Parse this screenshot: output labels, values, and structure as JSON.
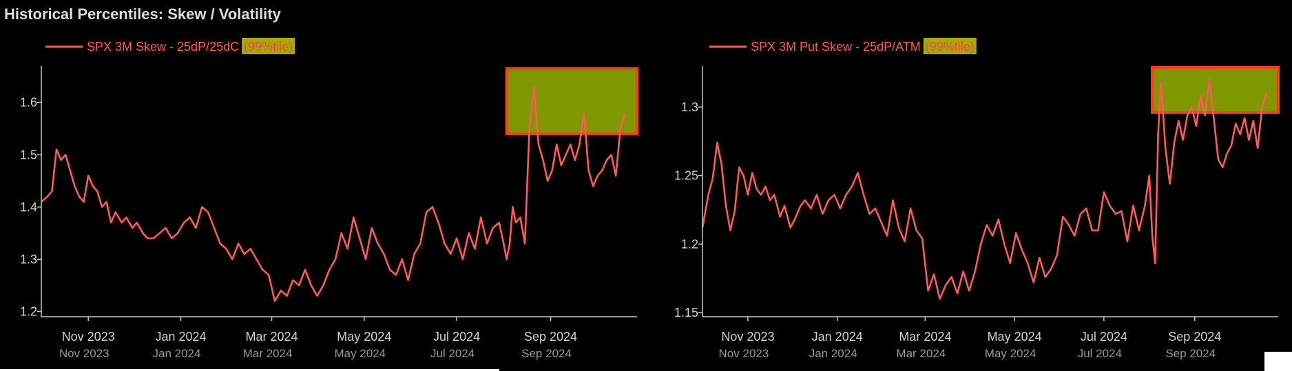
{
  "figure": {
    "title": "Historical Percentiles: Skew / Volatility",
    "colors": {
      "background": "#000000",
      "line": "#ff5a5a",
      "axis": "#c8c8c8",
      "text": "#d2d2d2",
      "title": "#dcdcdc",
      "badge_fill": "#a8a800",
      "badge_text": "#e05050",
      "highlight_fill": "#7f9800",
      "highlight_border": "#ff3b20"
    }
  },
  "chart_data": [
    {
      "type": "line",
      "legend": "SPX 3M Skew - 25dP/25dC",
      "badge": "(99%tile)",
      "ylim": [
        1.19,
        1.67
      ],
      "yticks": [
        1.2,
        1.3,
        1.4,
        1.5,
        1.6
      ],
      "ytick_labels": [
        "1.2",
        "1.3",
        "1.4",
        "1.5",
        "1.6"
      ],
      "xlim": [
        "2023-10-01",
        "2024-10-28"
      ],
      "xticks": [
        "2023-11-01",
        "2024-01-01",
        "2024-03-01",
        "2024-05-01",
        "2024-07-01",
        "2024-09-01"
      ],
      "xtick_labels": [
        "Nov 2023",
        "Jan 2024",
        "Mar 2024",
        "May 2024",
        "Jul 2024",
        "Sep 2024"
      ],
      "highlight": {
        "x": [
          "2024-08-03",
          "2024-10-28"
        ],
        "y": [
          1.54,
          1.665
        ]
      },
      "series": [
        {
          "x": [
            "2023-10-01",
            "2023-10-05",
            "2023-10-08",
            "2023-10-11",
            "2023-10-14",
            "2023-10-17",
            "2023-10-20",
            "2023-10-23",
            "2023-10-26",
            "2023-10-29",
            "2023-11-01",
            "2023-11-04",
            "2023-11-07",
            "2023-11-10",
            "2023-11-13",
            "2023-11-16",
            "2023-11-19",
            "2023-11-23",
            "2023-11-26",
            "2023-11-30",
            "2023-12-03",
            "2023-12-07",
            "2023-12-10",
            "2023-12-14",
            "2023-12-18",
            "2023-12-22",
            "2023-12-26",
            "2023-12-30",
            "2024-01-03",
            "2024-01-07",
            "2024-01-11",
            "2024-01-15",
            "2024-01-19",
            "2024-01-23",
            "2024-01-27",
            "2024-01-31",
            "2024-02-04",
            "2024-02-08",
            "2024-02-12",
            "2024-02-16",
            "2024-02-20",
            "2024-02-24",
            "2024-02-28",
            "2024-03-03",
            "2024-03-07",
            "2024-03-11",
            "2024-03-15",
            "2024-03-19",
            "2024-03-23",
            "2024-03-27",
            "2024-03-31",
            "2024-04-04",
            "2024-04-08",
            "2024-04-12",
            "2024-04-16",
            "2024-04-20",
            "2024-04-24",
            "2024-04-28",
            "2024-05-02",
            "2024-05-06",
            "2024-05-10",
            "2024-05-14",
            "2024-05-18",
            "2024-05-22",
            "2024-05-26",
            "2024-05-30",
            "2024-06-03",
            "2024-06-07",
            "2024-06-11",
            "2024-06-15",
            "2024-06-19",
            "2024-06-23",
            "2024-06-27",
            "2024-07-01",
            "2024-07-05",
            "2024-07-09",
            "2024-07-13",
            "2024-07-17",
            "2024-07-21",
            "2024-07-25",
            "2024-07-29",
            "2024-08-01",
            "2024-08-03",
            "2024-08-05",
            "2024-08-07",
            "2024-08-09",
            "2024-08-12",
            "2024-08-15",
            "2024-08-18",
            "2024-08-21",
            "2024-08-24",
            "2024-08-27",
            "2024-08-30",
            "2024-09-02",
            "2024-09-05",
            "2024-09-08",
            "2024-09-11",
            "2024-09-14",
            "2024-09-17",
            "2024-09-20",
            "2024-09-23",
            "2024-09-26",
            "2024-09-29",
            "2024-10-02",
            "2024-10-05",
            "2024-10-08",
            "2024-10-11",
            "2024-10-14",
            "2024-10-17",
            "2024-10-20"
          ],
          "values": [
            1.41,
            1.42,
            1.43,
            1.51,
            1.49,
            1.5,
            1.47,
            1.44,
            1.42,
            1.41,
            1.46,
            1.44,
            1.43,
            1.4,
            1.41,
            1.37,
            1.39,
            1.37,
            1.38,
            1.36,
            1.37,
            1.35,
            1.34,
            1.34,
            1.35,
            1.36,
            1.34,
            1.35,
            1.37,
            1.38,
            1.36,
            1.4,
            1.39,
            1.36,
            1.33,
            1.32,
            1.3,
            1.33,
            1.31,
            1.32,
            1.3,
            1.28,
            1.27,
            1.22,
            1.24,
            1.23,
            1.26,
            1.25,
            1.28,
            1.25,
            1.23,
            1.25,
            1.28,
            1.3,
            1.35,
            1.32,
            1.38,
            1.34,
            1.3,
            1.36,
            1.33,
            1.31,
            1.28,
            1.27,
            1.3,
            1.26,
            1.31,
            1.33,
            1.39,
            1.4,
            1.37,
            1.33,
            1.31,
            1.34,
            1.3,
            1.35,
            1.32,
            1.38,
            1.33,
            1.36,
            1.37,
            1.33,
            1.3,
            1.33,
            1.4,
            1.37,
            1.38,
            1.33,
            1.55,
            1.63,
            1.52,
            1.49,
            1.45,
            1.47,
            1.52,
            1.48,
            1.5,
            1.52,
            1.49,
            1.52,
            1.58,
            1.47,
            1.44,
            1.46,
            1.47,
            1.49,
            1.5,
            1.46,
            1.55,
            1.58
          ]
        }
      ]
    },
    {
      "type": "line",
      "legend": "SPX 3M Put Skew - 25dP/ATM",
      "badge": "(99%tile)",
      "ylim": [
        1.147,
        1.33
      ],
      "yticks": [
        1.15,
        1.2,
        1.25,
        1.3
      ],
      "ytick_labels": [
        "1.15",
        "1.2",
        "1.25",
        "1.3"
      ],
      "xlim": [
        "2023-10-01",
        "2024-10-28"
      ],
      "xticks": [
        "2023-11-01",
        "2024-01-01",
        "2024-03-01",
        "2024-05-01",
        "2024-07-01",
        "2024-09-01"
      ],
      "xtick_labels": [
        "Nov 2023",
        "Jan 2024",
        "Mar 2024",
        "May 2024",
        "Jul 2024",
        "Sep 2024"
      ],
      "highlight": {
        "x": [
          "2024-08-03",
          "2024-10-28"
        ],
        "y": [
          1.296,
          1.329
        ]
      },
      "series": [
        {
          "x": [
            "2023-10-01",
            "2023-10-05",
            "2023-10-08",
            "2023-10-11",
            "2023-10-14",
            "2023-10-17",
            "2023-10-20",
            "2023-10-23",
            "2023-10-26",
            "2023-10-29",
            "2023-11-01",
            "2023-11-04",
            "2023-11-07",
            "2023-11-10",
            "2023-11-13",
            "2023-11-16",
            "2023-11-19",
            "2023-11-23",
            "2023-11-26",
            "2023-11-30",
            "2023-12-03",
            "2023-12-07",
            "2023-12-10",
            "2023-12-14",
            "2023-12-18",
            "2023-12-22",
            "2023-12-26",
            "2023-12-30",
            "2024-01-03",
            "2024-01-07",
            "2024-01-11",
            "2024-01-15",
            "2024-01-19",
            "2024-01-23",
            "2024-01-27",
            "2024-01-31",
            "2024-02-04",
            "2024-02-08",
            "2024-02-12",
            "2024-02-16",
            "2024-02-20",
            "2024-02-24",
            "2024-02-28",
            "2024-03-03",
            "2024-03-07",
            "2024-03-11",
            "2024-03-15",
            "2024-03-19",
            "2024-03-23",
            "2024-03-27",
            "2024-03-31",
            "2024-04-04",
            "2024-04-08",
            "2024-04-12",
            "2024-04-16",
            "2024-04-20",
            "2024-04-24",
            "2024-04-28",
            "2024-05-02",
            "2024-05-06",
            "2024-05-10",
            "2024-05-14",
            "2024-05-18",
            "2024-05-22",
            "2024-05-26",
            "2024-05-30",
            "2024-06-03",
            "2024-06-07",
            "2024-06-11",
            "2024-06-15",
            "2024-06-19",
            "2024-06-23",
            "2024-06-27",
            "2024-07-01",
            "2024-07-05",
            "2024-07-09",
            "2024-07-13",
            "2024-07-17",
            "2024-07-21",
            "2024-07-25",
            "2024-07-29",
            "2024-08-01",
            "2024-08-03",
            "2024-08-05",
            "2024-08-07",
            "2024-08-09",
            "2024-08-12",
            "2024-08-15",
            "2024-08-18",
            "2024-08-21",
            "2024-08-24",
            "2024-08-27",
            "2024-08-30",
            "2024-09-02",
            "2024-09-05",
            "2024-09-08",
            "2024-09-11",
            "2024-09-14",
            "2024-09-17",
            "2024-09-20",
            "2024-09-23",
            "2024-09-26",
            "2024-09-29",
            "2024-10-02",
            "2024-10-05",
            "2024-10-08",
            "2024-10-11",
            "2024-10-14",
            "2024-10-17",
            "2024-10-20"
          ],
          "values": [
            1.212,
            1.236,
            1.248,
            1.274,
            1.258,
            1.228,
            1.21,
            1.224,
            1.256,
            1.25,
            1.236,
            1.252,
            1.24,
            1.236,
            1.242,
            1.232,
            1.236,
            1.22,
            1.228,
            1.212,
            1.218,
            1.228,
            1.232,
            1.226,
            1.236,
            1.222,
            1.232,
            1.236,
            1.226,
            1.236,
            1.242,
            1.252,
            1.236,
            1.222,
            1.226,
            1.216,
            1.206,
            1.232,
            1.212,
            1.202,
            1.226,
            1.21,
            1.204,
            1.166,
            1.178,
            1.16,
            1.17,
            1.176,
            1.164,
            1.18,
            1.166,
            1.18,
            1.2,
            1.214,
            1.206,
            1.218,
            1.2,
            1.186,
            1.208,
            1.196,
            1.186,
            1.172,
            1.19,
            1.176,
            1.182,
            1.192,
            1.22,
            1.214,
            1.206,
            1.222,
            1.226,
            1.21,
            1.21,
            1.238,
            1.228,
            1.222,
            1.224,
            1.202,
            1.228,
            1.21,
            1.228,
            1.25,
            1.206,
            1.186,
            1.28,
            1.318,
            1.27,
            1.244,
            1.274,
            1.29,
            1.276,
            1.294,
            1.3,
            1.286,
            1.308,
            1.294,
            1.32,
            1.292,
            1.262,
            1.256,
            1.266,
            1.272,
            1.288,
            1.28,
            1.292,
            1.276,
            1.29,
            1.27,
            1.3,
            1.31
          ]
        }
      ]
    }
  ]
}
